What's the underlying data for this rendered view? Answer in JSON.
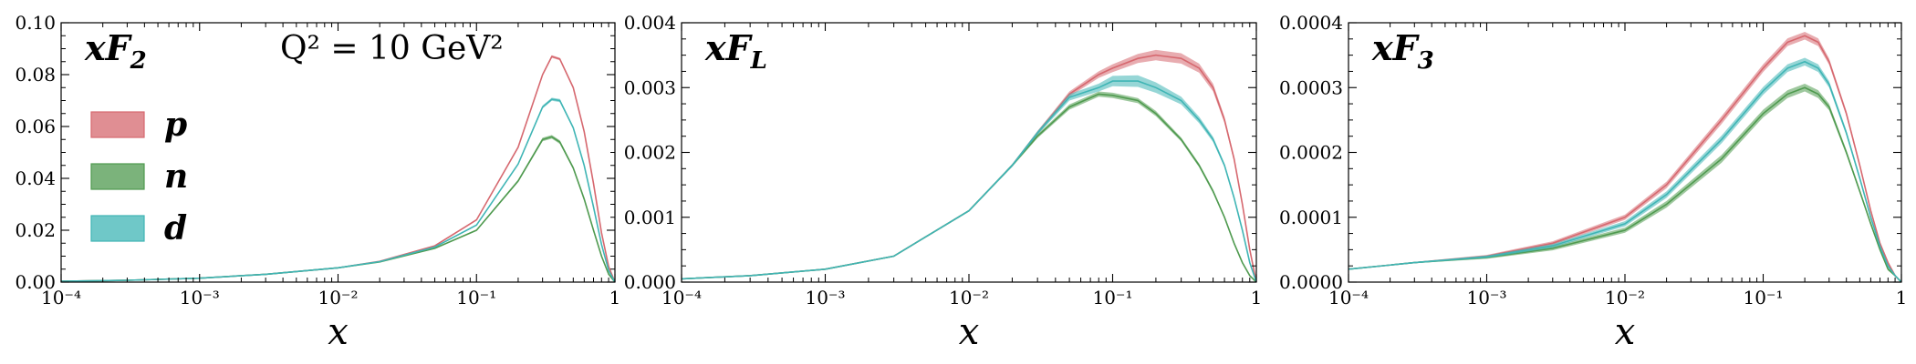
{
  "chart_data": [
    {
      "type": "line",
      "title": "xF2",
      "title_main": "xF",
      "title_sub": "2",
      "annotation": "Q² = 10 GeV²",
      "xlabel": "x",
      "xscale": "log",
      "xlim": [
        0.0001,
        1
      ],
      "ylim": [
        0,
        0.1
      ],
      "x_ticks": [
        "10⁻⁴",
        "10⁻³",
        "10⁻²",
        "10⁻¹",
        "1"
      ],
      "y_ticks": [
        "0.00",
        "0.02",
        "0.04",
        "0.06",
        "0.08",
        "0.10"
      ],
      "y_tick_values": [
        0,
        0.02,
        0.04,
        0.06,
        0.08,
        0.1
      ],
      "x": [
        0.0001,
        0.0003,
        0.001,
        0.003,
        0.01,
        0.02,
        0.05,
        0.1,
        0.2,
        0.3,
        0.35,
        0.4,
        0.5,
        0.6,
        0.7,
        0.8,
        0.9,
        1.0
      ],
      "series": [
        {
          "name": "p",
          "color": "#d6686f",
          "values": [
            0.0003,
            0.0007,
            0.0015,
            0.003,
            0.0055,
            0.008,
            0.014,
            0.024,
            0.052,
            0.08,
            0.087,
            0.086,
            0.075,
            0.058,
            0.038,
            0.019,
            0.006,
            0.0
          ],
          "band": [
            0.0,
            0.0,
            0.0,
            0.0,
            0.0001,
            0.0001,
            0.0002,
            0.0003,
            0.0004,
            0.0005,
            0.0005,
            0.0005,
            0.0005,
            0.0004,
            0.0003,
            0.0002,
            0.0001,
            0.0
          ]
        },
        {
          "name": "n",
          "color": "#4f9a4f",
          "values": [
            0.0003,
            0.0007,
            0.0015,
            0.003,
            0.0055,
            0.0078,
            0.013,
            0.02,
            0.039,
            0.055,
            0.056,
            0.054,
            0.044,
            0.032,
            0.02,
            0.01,
            0.003,
            0.0
          ],
          "band": [
            0.0,
            0.0,
            0.0,
            0.0,
            0.0001,
            0.0001,
            0.0002,
            0.0003,
            0.0005,
            0.0007,
            0.0007,
            0.0007,
            0.0006,
            0.0005,
            0.0004,
            0.0003,
            0.0001,
            0.0
          ]
        },
        {
          "name": "d",
          "color": "#3fb5b5",
          "values": [
            0.0003,
            0.0007,
            0.0015,
            0.003,
            0.0055,
            0.0079,
            0.0135,
            0.022,
            0.0455,
            0.0675,
            0.0705,
            0.07,
            0.0595,
            0.045,
            0.029,
            0.0145,
            0.0045,
            0.0
          ],
          "band": [
            0.0,
            0.0,
            0.0,
            0.0,
            0.0001,
            0.0001,
            0.0002,
            0.0003,
            0.0004,
            0.0006,
            0.0006,
            0.0006,
            0.0005,
            0.0004,
            0.0003,
            0.0002,
            0.0001,
            0.0
          ]
        }
      ],
      "legend": {
        "placement": "left",
        "entries": [
          "p",
          "n",
          "d"
        ]
      }
    },
    {
      "type": "line",
      "title": "xFL",
      "title_main": "xF",
      "title_sub": "L",
      "xlabel": "x",
      "xscale": "log",
      "xlim": [
        0.0001,
        1
      ],
      "ylim": [
        0,
        0.004
      ],
      "x_ticks": [
        "10⁻⁴",
        "10⁻³",
        "10⁻²",
        "10⁻¹",
        "1"
      ],
      "y_ticks": [
        "0.000",
        "0.001",
        "0.002",
        "0.003",
        "0.004"
      ],
      "y_tick_values": [
        0,
        0.001,
        0.002,
        0.003,
        0.004
      ],
      "x": [
        0.0001,
        0.0003,
        0.001,
        0.003,
        0.01,
        0.02,
        0.03,
        0.05,
        0.08,
        0.1,
        0.15,
        0.2,
        0.3,
        0.4,
        0.5,
        0.6,
        0.7,
        0.8,
        0.9,
        1.0
      ],
      "series": [
        {
          "name": "p",
          "color": "#d6686f",
          "values": [
            5e-05,
            0.0001,
            0.0002,
            0.0004,
            0.0011,
            0.0018,
            0.0023,
            0.0029,
            0.0032,
            0.0033,
            0.00345,
            0.0035,
            0.00345,
            0.0033,
            0.003,
            0.0025,
            0.0019,
            0.0012,
            0.0005,
            0.0
          ],
          "band": [
            0.0,
            0.0,
            0.0,
            0.0,
            1e-05,
            2e-05,
            3e-05,
            4e-05,
            5e-05,
            6e-05,
            7e-05,
            8e-05,
            8e-05,
            7e-05,
            6e-05,
            5e-05,
            4e-05,
            3e-05,
            2e-05,
            0.0
          ]
        },
        {
          "name": "n",
          "color": "#4f9a4f",
          "values": [
            5e-05,
            0.0001,
            0.0002,
            0.0004,
            0.0011,
            0.0018,
            0.00225,
            0.0027,
            0.0029,
            0.00288,
            0.0028,
            0.0026,
            0.0022,
            0.0018,
            0.0014,
            0.001,
            0.0006,
            0.0003,
            0.0001,
            0.0
          ],
          "band": [
            0.0,
            0.0,
            0.0,
            0.0,
            1e-05,
            2e-05,
            3e-05,
            4e-05,
            4e-05,
            4e-05,
            4e-05,
            4e-05,
            3e-05,
            3e-05,
            3e-05,
            2e-05,
            2e-05,
            1e-05,
            1e-05,
            0.0
          ]
        },
        {
          "name": "d",
          "color": "#3fb5b5",
          "values": [
            5e-05,
            0.0001,
            0.0002,
            0.0004,
            0.0011,
            0.0018,
            0.0023,
            0.00285,
            0.003,
            0.0031,
            0.0031,
            0.003,
            0.0028,
            0.0025,
            0.0022,
            0.0018,
            0.0013,
            0.0008,
            0.0003,
            0.0
          ],
          "band": [
            0.0,
            0.0,
            0.0,
            0.0,
            1e-05,
            2e-05,
            3e-05,
            5e-05,
            6e-05,
            8e-05,
            9e-05,
            8e-05,
            6e-05,
            5e-05,
            4e-05,
            3e-05,
            3e-05,
            2e-05,
            1e-05,
            0.0
          ]
        }
      ]
    },
    {
      "type": "line",
      "title": "xF3",
      "title_main": "xF",
      "title_sub": "3",
      "xlabel": "x",
      "xscale": "log",
      "xlim": [
        0.0001,
        1
      ],
      "ylim": [
        0,
        0.0004
      ],
      "x_ticks": [
        "10⁻⁴",
        "10⁻³",
        "10⁻²",
        "10⁻¹",
        "1"
      ],
      "y_ticks": [
        "0.0000",
        "0.0001",
        "0.0002",
        "0.0003",
        "0.0004"
      ],
      "y_tick_values": [
        0,
        0.0001,
        0.0002,
        0.0003,
        0.0004
      ],
      "x": [
        0.0001,
        0.0003,
        0.001,
        0.003,
        0.01,
        0.02,
        0.05,
        0.1,
        0.15,
        0.2,
        0.25,
        0.3,
        0.4,
        0.5,
        0.6,
        0.7,
        0.8,
        0.9,
        1.0
      ],
      "series": [
        {
          "name": "p",
          "color": "#d6686f",
          "values": [
            2e-05,
            3e-05,
            4e-05,
            6e-05,
            0.0001,
            0.00015,
            0.00025,
            0.00033,
            0.00037,
            0.00038,
            0.00037,
            0.00034,
            0.00026,
            0.00018,
            0.00011,
            6e-05,
            3e-05,
            1e-05,
            0.0
          ],
          "band": [
            0.0,
            1e-06,
            2e-06,
            3e-06,
            4e-06,
            5e-06,
            6e-06,
            6e-06,
            6e-06,
            6e-06,
            6e-06,
            5e-06,
            4e-06,
            3e-06,
            3e-06,
            2e-06,
            2e-06,
            1e-06,
            0.0
          ]
        },
        {
          "name": "n",
          "color": "#4f9a4f",
          "values": [
            2e-05,
            3e-05,
            3.8e-05,
            5.2e-05,
            8e-05,
            0.00012,
            0.00019,
            0.00026,
            0.00029,
            0.0003,
            0.00029,
            0.00027,
            0.0002,
            0.00014,
            9e-05,
            5e-05,
            2e-05,
            1e-05,
            0.0
          ],
          "band": [
            0.0,
            1e-06,
            2e-06,
            3e-06,
            4e-06,
            5e-06,
            6e-06,
            6e-06,
            6e-06,
            6e-06,
            6e-06,
            5e-06,
            4e-06,
            3e-06,
            3e-06,
            2e-06,
            2e-06,
            1e-06,
            0.0
          ]
        },
        {
          "name": "d",
          "color": "#3fb5b5",
          "values": [
            2e-05,
            3e-05,
            3.9e-05,
            5.6e-05,
            9e-05,
            0.000135,
            0.00022,
            0.000295,
            0.00033,
            0.00034,
            0.00033,
            0.000305,
            0.00023,
            0.00016,
            0.0001,
            5.5e-05,
            2.5e-05,
            1e-05,
            0.0
          ],
          "band": [
            0.0,
            1e-06,
            2e-06,
            3e-06,
            4e-06,
            5e-06,
            6e-06,
            6e-06,
            6e-06,
            6e-06,
            6e-06,
            5e-06,
            4e-06,
            3e-06,
            3e-06,
            2e-06,
            2e-06,
            1e-06,
            0.0
          ]
        }
      ]
    }
  ]
}
